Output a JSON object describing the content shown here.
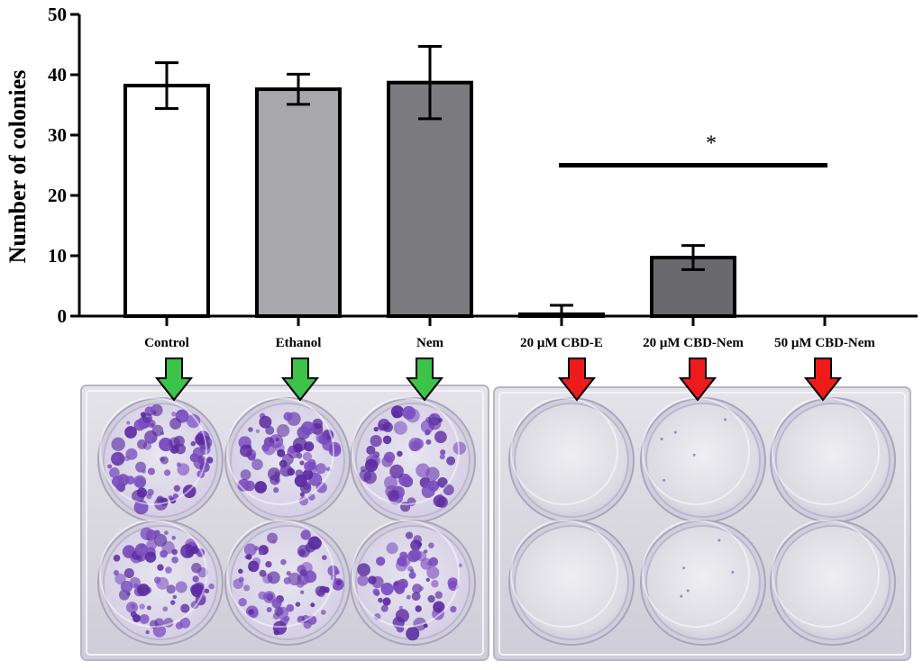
{
  "chart_data": {
    "type": "bar",
    "ylabel": "Number of colonies",
    "ylim": [
      0,
      50
    ],
    "yticks": [
      0,
      10,
      20,
      30,
      40,
      50
    ],
    "categories": [
      "Control",
      "Ethanol",
      "Nem",
      "20 μM CBD-E",
      "20 μM CBD-Nem",
      "50 μM CBD-Nem"
    ],
    "values": [
      38.2,
      37.6,
      38.7,
      0.3,
      9.7,
      0.0
    ],
    "error_plus_minus": [
      3.8,
      2.5,
      6.0,
      1.5,
      2.0,
      0.0
    ],
    "bar_colors": [
      "#ffffff",
      "#a8a8ac",
      "#7b7b7f",
      "#ffffff",
      "#6a6a6e",
      "#ffffff"
    ],
    "significance": {
      "from_category": 3,
      "to_category": 5,
      "y": 25,
      "label": "*"
    },
    "grid": false,
    "legend": "none"
  },
  "plates": {
    "arrow_colors": [
      "#3cc34a",
      "#3cc34a",
      "#3cc34a",
      "#ee1b1b",
      "#ee1b1b",
      "#ee1b1b"
    ],
    "well_colony_density": [
      0.85,
      0.8,
      0.65,
      0.0,
      0.02,
      0.0
    ],
    "stain_color": "#5a2aa0",
    "plate_color": "#d6d4dd"
  }
}
